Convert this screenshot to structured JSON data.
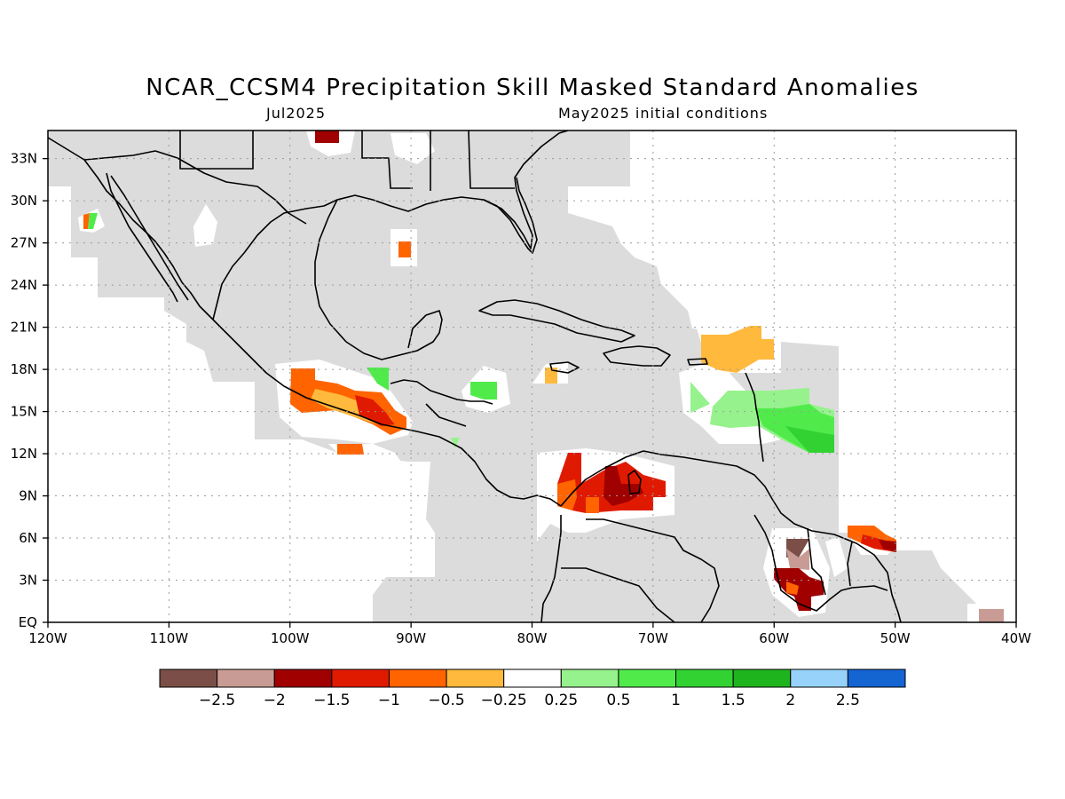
{
  "title": "NCAR_CCSM4 Precipitation Skill Masked Standard Anomalies",
  "subtitle_left": "Jul2025",
  "subtitle_right": "May2025 initial conditions",
  "map": {
    "lon_range": [
      -120,
      -40
    ],
    "lat_range": [
      0,
      35
    ],
    "lon_tick_labels": [
      {
        "lon": -120,
        "label": "120W"
      },
      {
        "lon": -110,
        "label": "110W"
      },
      {
        "lon": -100,
        "label": "100W"
      },
      {
        "lon": -90,
        "label": "90W"
      },
      {
        "lon": -80,
        "label": "80W"
      },
      {
        "lon": -70,
        "label": "70W"
      },
      {
        "lon": -60,
        "label": "60W"
      },
      {
        "lon": -50,
        "label": "50W"
      },
      {
        "lon": -40,
        "label": "40W"
      }
    ],
    "lat_tick_labels": [
      {
        "lat": 0,
        "label": "EQ"
      },
      {
        "lat": 3,
        "label": "3N"
      },
      {
        "lat": 6,
        "label": "6N"
      },
      {
        "lat": 9,
        "label": "9N"
      },
      {
        "lat": 12,
        "label": "12N"
      },
      {
        "lat": 15,
        "label": "15N"
      },
      {
        "lat": 18,
        "label": "18N"
      },
      {
        "lat": 21,
        "label": "21N"
      },
      {
        "lat": 24,
        "label": "24N"
      },
      {
        "lat": 27,
        "label": "27N"
      },
      {
        "lat": 30,
        "label": "30N"
      },
      {
        "lat": 33,
        "label": "33N"
      }
    ],
    "grid": true
  },
  "colorbar": {
    "colors": [
      "#7b4f47",
      "#c89c94",
      "#a00000",
      "#e01a00",
      "#ff6400",
      "#ffb93c",
      "#ffffff",
      "#96f28c",
      "#50eb4b",
      "#32d232",
      "#1eb41e",
      "#96d2fa",
      "#1464d2"
    ],
    "labels": [
      "-2.5",
      "-2",
      "-1.5",
      "-1",
      "-0.5",
      "-0.25",
      "0.25",
      "0.5",
      "1",
      "1.5",
      "2",
      "2.5"
    ]
  },
  "anomaly_patches": [
    {
      "region": "Pacific coast southern Mexico",
      "class": "-1 to -0.5",
      "color": "#ff6400"
    },
    {
      "region": "Guerrero-Oaxaca coast",
      "class": "-0.5 to -0.25",
      "color": "#ffb93c"
    },
    {
      "region": "northern Colombia / Venezuela",
      "class": "-2 to -1",
      "color": "#e01a00"
    },
    {
      "region": "Lake Maracaibo",
      "class": "-2 to -1.5",
      "color": "#a00000"
    },
    {
      "region": "Guyana interior",
      "class": "-2.5 to -1",
      "color": "#a00000"
    },
    {
      "region": "French Guiana offshore",
      "class": "-1.5 to -0.5",
      "color": "#e01a00"
    },
    {
      "region": "east of Leeward Islands",
      "class": "0.25 to 1.5",
      "color": "#50eb4b"
    },
    {
      "region": "northeast of Puerto Rico",
      "class": "-0.5 to -0.25",
      "color": "#ffb93c"
    },
    {
      "region": "Gulf of Mexico",
      "class": "-1 to -0.5",
      "color": "#ff6400"
    },
    {
      "region": "Oklahoma",
      "class": "-2 to -1.5",
      "color": "#a00000"
    },
    {
      "region": "Honduras coast",
      "class": "0.5 to 1",
      "color": "#50eb4b"
    }
  ]
}
